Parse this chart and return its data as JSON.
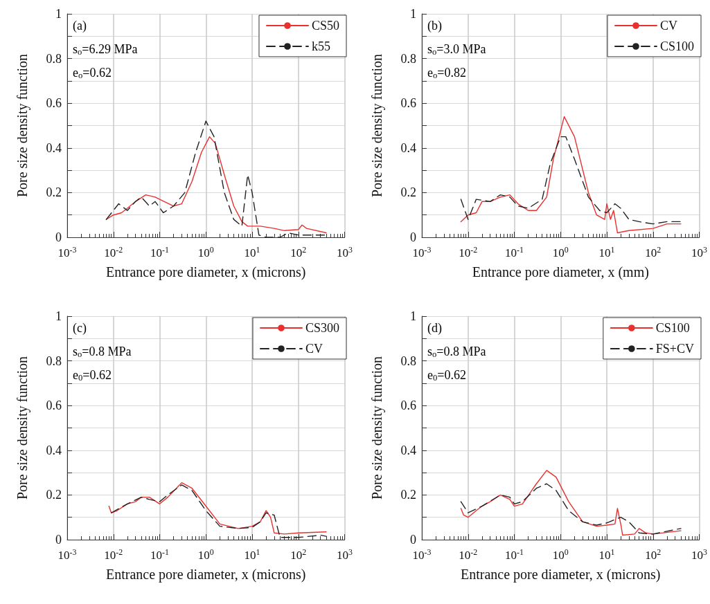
{
  "chart_data": [
    {
      "type": "line",
      "xlabel": "Entrance pore diameter, x (microns)",
      "ylabel": "Pore size density function",
      "annotations": [
        "(a)",
        "s$_{o}$=6.29 MPa",
        "e$_{o}$=0.62"
      ],
      "log": "x",
      "grid": true,
      "legend": "top right",
      "marker": "none",
      "xlim": [
        0.001,
        1000
      ],
      "xticks": [
        {
          "value": 0.001,
          "label": "10$^{-3}$"
        },
        {
          "value": 0.01,
          "label": "10$^{-2}$"
        },
        {
          "value": 0.1,
          "label": "10$^{-1}$"
        },
        {
          "value": 1,
          "label": "10$^{0}$"
        },
        {
          "value": 10,
          "label": "10$^{1}$"
        },
        {
          "value": 100,
          "label": "10$^{2}$"
        },
        {
          "value": 1000,
          "label": "10$^{3}$"
        }
      ],
      "ylim": [
        0,
        1
      ],
      "yticks": [
        0,
        {
          "value": 0.1,
          "label": null
        },
        0.2,
        {
          "value": 0.3,
          "label": null
        },
        0.4,
        {
          "value": 0.5,
          "label": null
        },
        0.6,
        {
          "value": 0.7,
          "label": null
        },
        0.8,
        {
          "value": 0.9,
          "label": null
        },
        1
      ],
      "series": [
        {
          "name": "CS50",
          "color": "#e8312f",
          "line_style": "solid",
          "x": [
            0.007,
            0.01,
            0.015,
            0.02,
            0.03,
            0.05,
            0.08,
            0.1,
            0.2,
            0.3,
            0.5,
            0.8,
            1.2,
            1.6,
            2.5,
            4,
            6,
            8,
            15,
            30,
            50,
            100,
            120,
            150,
            400
          ],
          "values": [
            0.08,
            0.1,
            0.11,
            0.13,
            0.16,
            0.19,
            0.18,
            0.17,
            0.14,
            0.15,
            0.25,
            0.38,
            0.45,
            0.42,
            0.28,
            0.14,
            0.07,
            0.05,
            0.05,
            0.04,
            0.03,
            0.035,
            0.055,
            0.04,
            0.02
          ]
        },
        {
          "name": "k55",
          "color": "#222222",
          "line_style": "dashed",
          "x": [
            0.007,
            0.013,
            0.02,
            0.03,
            0.04,
            0.06,
            0.08,
            0.12,
            0.2,
            0.35,
            0.6,
            1,
            1.5,
            2.5,
            4,
            6,
            8,
            10,
            14,
            20,
            40,
            60,
            100,
            400
          ],
          "values": [
            0.08,
            0.15,
            0.12,
            0.16,
            0.18,
            0.14,
            0.16,
            0.11,
            0.14,
            0.2,
            0.38,
            0.52,
            0.45,
            0.2,
            0.08,
            0.05,
            0.28,
            0.2,
            0.01,
            0,
            0,
            0.02,
            0.01,
            0.01
          ]
        }
      ]
    },
    {
      "type": "line",
      "xlabel": "Entrance pore diameter, x (mm)",
      "ylabel": "Pore size density function",
      "annotations": [
        "(b)",
        "s$_{o}$=3.0 MPa",
        "e$_{o}$=0.82"
      ],
      "log": "x",
      "grid": true,
      "legend": "top right",
      "marker": "none",
      "xlim": [
        0.001,
        1000
      ],
      "xticks": [
        {
          "value": 0.001,
          "label": "10$^{-3}$"
        },
        {
          "value": 0.01,
          "label": "10$^{-2}$"
        },
        {
          "value": 0.1,
          "label": "10$^{-1}$"
        },
        {
          "value": 1,
          "label": "10$^{0}$"
        },
        {
          "value": 10,
          "label": "10$^{1}$"
        },
        {
          "value": 100,
          "label": "10$^{2}$"
        },
        {
          "value": 1000,
          "label": "10$^{3}$"
        }
      ],
      "ylim": [
        0,
        1
      ],
      "yticks": [
        0,
        {
          "value": 0.1,
          "label": null
        },
        0.2,
        {
          "value": 0.3,
          "label": null
        },
        0.4,
        {
          "value": 0.5,
          "label": null
        },
        0.6,
        {
          "value": 0.7,
          "label": null
        },
        0.8,
        {
          "value": 0.9,
          "label": null
        },
        1
      ],
      "series": [
        {
          "name": "CV",
          "color": "#e8312f",
          "line_style": "solid",
          "x": [
            0.007,
            0.01,
            0.015,
            0.02,
            0.03,
            0.05,
            0.08,
            0.12,
            0.2,
            0.3,
            0.5,
            0.7,
            1.2,
            2,
            4,
            6,
            9,
            10,
            12,
            14,
            17,
            30,
            100,
            200,
            400
          ],
          "values": [
            0.07,
            0.1,
            0.11,
            0.16,
            0.16,
            0.18,
            0.19,
            0.15,
            0.12,
            0.12,
            0.18,
            0.35,
            0.54,
            0.45,
            0.2,
            0.1,
            0.08,
            0.15,
            0.08,
            0.12,
            0.02,
            0.03,
            0.04,
            0.06,
            0.06
          ]
        },
        {
          "name": "CS100",
          "color": "#222222",
          "line_style": "dashed",
          "x": [
            0.007,
            0.01,
            0.015,
            0.03,
            0.05,
            0.08,
            0.12,
            0.2,
            0.4,
            0.6,
            1,
            1.3,
            2,
            4,
            7,
            10,
            15,
            20,
            30,
            50,
            100,
            200,
            400
          ],
          "values": [
            0.17,
            0.08,
            0.17,
            0.16,
            0.19,
            0.18,
            0.14,
            0.13,
            0.17,
            0.33,
            0.45,
            0.45,
            0.35,
            0.18,
            0.12,
            0.11,
            0.15,
            0.13,
            0.08,
            0.07,
            0.06,
            0.07,
            0.07
          ]
        }
      ]
    },
    {
      "type": "line",
      "xlabel": "Entrance pore diameter, x (microns)",
      "ylabel": "Pore size density function",
      "annotations": [
        "(c)",
        "s$_{o}$=0.8 MPa",
        "e$_{0}$=0.62"
      ],
      "log": "x",
      "grid": true,
      "legend": "top right",
      "marker": "none",
      "xlim": [
        0.001,
        1000
      ],
      "xticks": [
        {
          "value": 0.001,
          "label": "10$^{-3}$"
        },
        {
          "value": 0.01,
          "label": "10$^{-2}$"
        },
        {
          "value": 0.1,
          "label": "10$^{-1}$"
        },
        {
          "value": 1,
          "label": "10$^{0}$"
        },
        {
          "value": 10,
          "label": "10$^{1}$"
        },
        {
          "value": 100,
          "label": "10$^{2}$"
        },
        {
          "value": 1000,
          "label": "10$^{3}$"
        }
      ],
      "ylim": [
        0,
        1
      ],
      "yticks": [
        0,
        {
          "value": 0.1,
          "label": null
        },
        0.2,
        {
          "value": 0.3,
          "label": null
        },
        0.4,
        {
          "value": 0.5,
          "label": null
        },
        0.6,
        {
          "value": 0.7,
          "label": null
        },
        0.8,
        {
          "value": 0.9,
          "label": null
        },
        1
      ],
      "series": [
        {
          "name": "CS300",
          "color": "#e8312f",
          "line_style": "solid",
          "x": [
            0.008,
            0.009,
            0.012,
            0.02,
            0.03,
            0.04,
            0.06,
            0.1,
            0.15,
            0.3,
            0.5,
            1,
            2,
            5,
            10,
            15,
            20,
            25,
            30,
            50,
            100,
            400
          ],
          "values": [
            0.15,
            0.12,
            0.13,
            0.16,
            0.17,
            0.19,
            0.19,
            0.16,
            0.19,
            0.255,
            0.23,
            0.15,
            0.07,
            0.05,
            0.06,
            0.08,
            0.13,
            0.1,
            0.03,
            0.025,
            0.03,
            0.035
          ]
        },
        {
          "name": "CV",
          "color": "#222222",
          "line_style": "dashed",
          "x": [
            0.009,
            0.02,
            0.04,
            0.06,
            0.1,
            0.15,
            0.3,
            0.5,
            1,
            2,
            5,
            10,
            15,
            20,
            30,
            40,
            100,
            300,
            400
          ],
          "values": [
            0.12,
            0.16,
            0.19,
            0.18,
            0.17,
            0.2,
            0.245,
            0.22,
            0.13,
            0.06,
            0.05,
            0.055,
            0.08,
            0.12,
            0.11,
            0.01,
            0.01,
            0.02,
            0.015
          ]
        }
      ]
    },
    {
      "type": "line",
      "xlabel": "Entrance pore diameter, x (microns)",
      "ylabel": "Pore size density function",
      "annotations": [
        "(d)",
        "s$_{o}$=0.8 MPa",
        "e$_{0}$=0.62"
      ],
      "log": "x",
      "grid": true,
      "legend": "top right",
      "marker": "none",
      "xlim": [
        0.001,
        1000
      ],
      "xticks": [
        {
          "value": 0.001,
          "label": "10$^{-3}$"
        },
        {
          "value": 0.01,
          "label": "10$^{-2}$"
        },
        {
          "value": 0.1,
          "label": "10$^{-1}$"
        },
        {
          "value": 1,
          "label": "10$^{0}$"
        },
        {
          "value": 10,
          "label": "10$^{1}$"
        },
        {
          "value": 100,
          "label": "10$^{2}$"
        },
        {
          "value": 1000,
          "label": "10$^{3}$"
        }
      ],
      "ylim": [
        0,
        1
      ],
      "yticks": [
        0,
        {
          "value": 0.1,
          "label": null
        },
        0.2,
        {
          "value": 0.3,
          "label": null
        },
        0.4,
        {
          "value": 0.5,
          "label": null
        },
        0.6,
        {
          "value": 0.7,
          "label": null
        },
        0.8,
        {
          "value": 0.9,
          "label": null
        },
        1
      ],
      "series": [
        {
          "name": "CS100",
          "color": "#e8312f",
          "line_style": "solid",
          "x": [
            0.007,
            0.008,
            0.01,
            0.015,
            0.02,
            0.03,
            0.05,
            0.08,
            0.1,
            0.15,
            0.3,
            0.5,
            0.8,
            1.5,
            3,
            6,
            10,
            15,
            17,
            20,
            22,
            40,
            50,
            70,
            100,
            400
          ],
          "values": [
            0.14,
            0.11,
            0.1,
            0.13,
            0.15,
            0.17,
            0.2,
            0.18,
            0.15,
            0.16,
            0.25,
            0.31,
            0.28,
            0.17,
            0.08,
            0.06,
            0.065,
            0.07,
            0.14,
            0.07,
            0.02,
            0.025,
            0.05,
            0.03,
            0.025,
            0.04
          ]
        },
        {
          "name": "FS+CV",
          "color": "#222222",
          "line_style": "dashed",
          "x": [
            0.007,
            0.01,
            0.02,
            0.05,
            0.08,
            0.1,
            0.15,
            0.3,
            0.5,
            0.8,
            1.5,
            3,
            6,
            10,
            20,
            30,
            50,
            100,
            400
          ],
          "values": [
            0.17,
            0.12,
            0.15,
            0.2,
            0.19,
            0.16,
            0.17,
            0.23,
            0.25,
            0.22,
            0.13,
            0.08,
            0.065,
            0.075,
            0.1,
            0.08,
            0.03,
            0.025,
            0.05
          ]
        }
      ]
    }
  ]
}
